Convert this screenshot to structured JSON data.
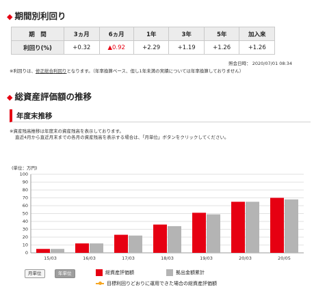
{
  "returns_section": {
    "title": "期間別利回り",
    "columns": [
      "期　間",
      "3ヵ月",
      "6ヵ月",
      "1年",
      "3年",
      "5年",
      "加入来"
    ],
    "row_label": "利回り(%)",
    "values": [
      "+0.32",
      "▲0.92",
      "+2.29",
      "+1.19",
      "+1.26",
      "+1.26"
    ],
    "as_of": "照会日時： 2020/07/01 08:34",
    "note_prefix": "※利回りは、",
    "note_link": "修正総合利回り",
    "note_suffix": "となります。（年率換算ベース、但し1年未満の実績については年率換算しておりません）"
  },
  "assets_section": {
    "title": "総資産評価額の推移",
    "sub_title": "年度末推移",
    "desc1": "※資産残高推移は年度末の資産残高を表示しております。",
    "desc2": "直近4月から直近月末までの各月の資産残高を表示する場合は、「月単位」ボタンをクリックしてください。",
    "unit_label": "(単位：万円)",
    "month_button": "月単位",
    "year_button": "年単位",
    "legend_total": "総資産評価額",
    "legend_contrib": "拠出金額累計",
    "legend_target": "目標利回りどおりに運用できた場合の総資産評価額",
    "colors": {
      "total": "#e60012",
      "contrib": "#b4b4b4",
      "target": "#f5a623"
    }
  },
  "chart_data": {
    "type": "bar",
    "categories": [
      "15/03",
      "16/03",
      "17/03",
      "18/03",
      "19/03",
      "20/03",
      "20/05"
    ],
    "series": [
      {
        "name": "総資産評価額",
        "values": [
          5,
          12,
          23,
          36,
          51,
          65,
          70
        ]
      },
      {
        "name": "拠出金額累計",
        "values": [
          5,
          12,
          22,
          34,
          49,
          65,
          68
        ]
      }
    ],
    "ylim": [
      0,
      100
    ],
    "yticks": [
      0,
      10,
      20,
      30,
      40,
      50,
      60,
      70,
      80,
      90,
      100
    ],
    "ylabel": "(単位：万円)",
    "grid": true
  }
}
